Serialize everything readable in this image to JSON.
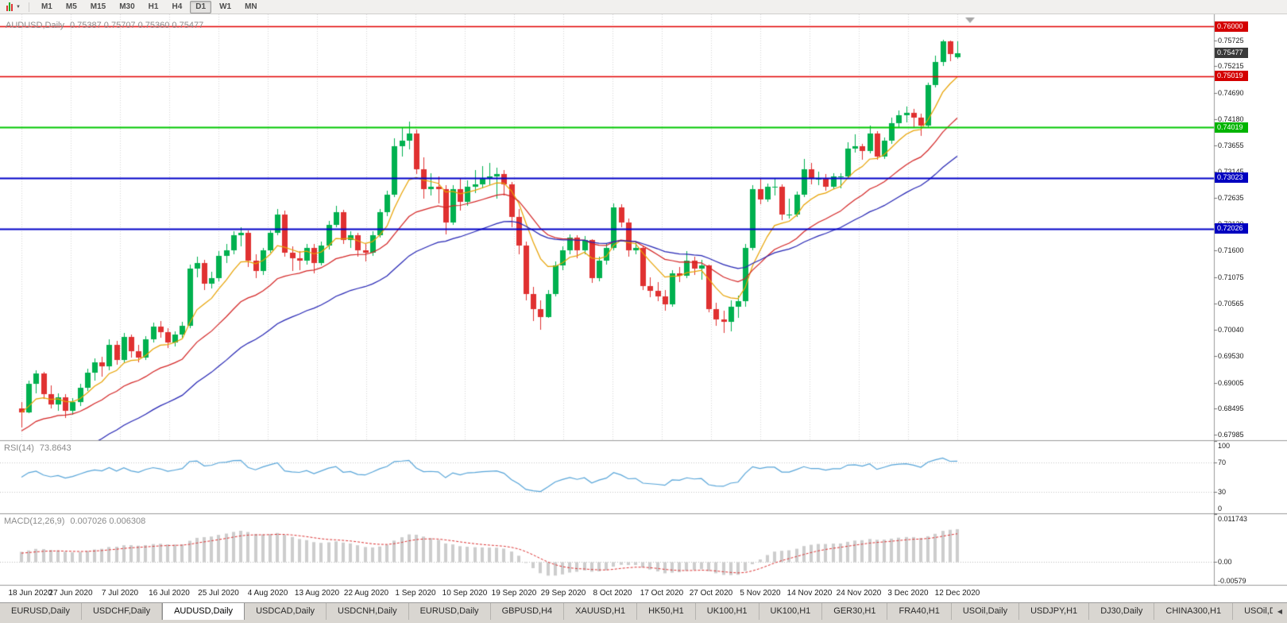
{
  "toolbar": {
    "timeframes": [
      "M1",
      "M5",
      "M15",
      "M30",
      "H1",
      "H4",
      "D1",
      "W1",
      "MN"
    ],
    "active": "D1",
    "caret_glyph": "▼"
  },
  "chart": {
    "symbol_title": "AUDUSD,Daily",
    "ohlc_text": "0.75387 0.75707 0.75360 0.75477"
  },
  "chart_data": {
    "type": "candlestick",
    "title": "AUDUSD Daily candlestick chart with RSI and MACD indicators",
    "symbol": "AUDUSD",
    "period": "Daily",
    "last": {
      "open": 0.75387,
      "high": 0.75707,
      "low": 0.7536,
      "close": 0.75477
    },
    "colors": {
      "up": "#00b14f",
      "down": "#e03131",
      "grid": "#d6d6d6"
    },
    "price_axis": {
      "range_top": 0.76234,
      "range_bottom": 0.67876,
      "labels": [
        "0.75725",
        "0.75215",
        "0.74690",
        "0.74180",
        "0.73655",
        "0.73145",
        "0.72635",
        "0.72120",
        "0.71600",
        "0.71075",
        "0.70565",
        "0.70040",
        "0.69530",
        "0.69005",
        "0.68495",
        "0.67985"
      ]
    },
    "levels": [
      {
        "price": 0.76,
        "label": "0.76000",
        "color": "#e10000",
        "badge_bg": "#d40000",
        "width": 1.4
      },
      {
        "price": 0.75019,
        "label": "0.75019",
        "color": "#e10000",
        "badge_bg": "#d40000",
        "width": 1.4
      },
      {
        "price": 0.74019,
        "label": "0.74019",
        "color": "#00c800",
        "badge_bg": "#00b400",
        "width": 1.8
      },
      {
        "price": 0.73023,
        "label": "0.73023",
        "color": "#0000c8",
        "badge_bg": "#0000c0",
        "width": 1.8
      },
      {
        "price": 0.72026,
        "label": "0.72026",
        "color": "#0000c8",
        "badge_bg": "#0000c0",
        "width": 1.8
      }
    ],
    "current_price_badge": {
      "label": "0.75477",
      "bg": "#3a3a3a"
    },
    "dates": [
      "18 Jun 2020",
      "27 Jun 2020",
      "7 Jul 2020",
      "16 Jul 2020",
      "25 Jul 2020",
      "4 Aug 2020",
      "13 Aug 2020",
      "22 Aug 2020",
      "1 Sep 2020",
      "10 Sep 2020",
      "19 Sep 2020",
      "29 Sep 2020",
      "8 Oct 2020",
      "17 Oct 2020",
      "27 Oct 2020",
      "5 Nov 2020",
      "14 Nov 2020",
      "24 Nov 2020",
      "3 Dec 2020",
      "12 Dec 2020"
    ],
    "moving_averages": [
      {
        "name": "fast-ma",
        "period": 8,
        "color": "#e8a200",
        "seed_offset": 0
      },
      {
        "name": "medium-ma",
        "period": 20,
        "color": "#d42424",
        "seed_offset": -0.004
      },
      {
        "name": "slow-ma",
        "period": 38,
        "color": "#2424b4",
        "seed_offset": -0.014
      }
    ],
    "rsi": {
      "title": "RSI(14)",
      "value_text": "73.8643",
      "period": 14,
      "color": "#57a5d9",
      "range": [
        0,
        100
      ],
      "guides": [
        70,
        30
      ],
      "axis_labels": [
        {
          "v": 100,
          "t": "100"
        },
        {
          "v": 70,
          "t": "70"
        },
        {
          "v": 30,
          "t": "30"
        },
        {
          "v": 0,
          "t": "0"
        }
      ]
    },
    "macd": {
      "title": "MACD(12,26,9)",
      "value_text": "0.007026 0.006308",
      "fast": 12,
      "slow": 26,
      "signal": 9,
      "hist_color": "#cdcdcd",
      "signal_color": "#dd3333",
      "range_top": 0.011743,
      "range_bottom": -0.00579,
      "axis_labels": [
        {
          "v": 0.011743,
          "t": "0.011743"
        },
        {
          "v": 0,
          "t": "0.00"
        },
        {
          "v": -0.00579,
          "t": "-0.00579"
        }
      ]
    },
    "candles": [
      [
        0.685,
        0.6862,
        0.6812,
        0.6842
      ],
      [
        0.6842,
        0.6905,
        0.684,
        0.6898
      ],
      [
        0.6898,
        0.6925,
        0.688,
        0.6918
      ],
      [
        0.6918,
        0.6922,
        0.6868,
        0.6878
      ],
      [
        0.6878,
        0.6895,
        0.685,
        0.6858
      ],
      [
        0.6858,
        0.688,
        0.6845,
        0.6872
      ],
      [
        0.6872,
        0.6878,
        0.6832,
        0.6845
      ],
      [
        0.6845,
        0.687,
        0.6838,
        0.6862
      ],
      [
        0.6862,
        0.6898,
        0.6855,
        0.689
      ],
      [
        0.689,
        0.6928,
        0.6885,
        0.692
      ],
      [
        0.692,
        0.6948,
        0.6905,
        0.694
      ],
      [
        0.694,
        0.6952,
        0.6912,
        0.6932
      ],
      [
        0.6932,
        0.6985,
        0.6925,
        0.6975
      ],
      [
        0.6975,
        0.6982,
        0.6935,
        0.6945
      ],
      [
        0.6945,
        0.6998,
        0.694,
        0.699
      ],
      [
        0.699,
        0.6995,
        0.695,
        0.6962
      ],
      [
        0.6962,
        0.6975,
        0.694,
        0.695
      ],
      [
        0.695,
        0.6992,
        0.6945,
        0.6985
      ],
      [
        0.6985,
        0.7018,
        0.698,
        0.701
      ],
      [
        0.701,
        0.7022,
        0.6988,
        0.7
      ],
      [
        0.7,
        0.7008,
        0.6968,
        0.698
      ],
      [
        0.698,
        0.7002,
        0.6972,
        0.6995
      ],
      [
        0.6995,
        0.702,
        0.6988,
        0.7012
      ],
      [
        0.7012,
        0.7132,
        0.7008,
        0.7125
      ],
      [
        0.7125,
        0.7148,
        0.7108,
        0.7135
      ],
      [
        0.7135,
        0.7142,
        0.7082,
        0.7095
      ],
      [
        0.7095,
        0.7118,
        0.7085,
        0.7105
      ],
      [
        0.7105,
        0.7158,
        0.71,
        0.715
      ],
      [
        0.715,
        0.7172,
        0.7135,
        0.716
      ],
      [
        0.716,
        0.7198,
        0.7152,
        0.719
      ],
      [
        0.719,
        0.7205,
        0.7168,
        0.7195
      ],
      [
        0.7195,
        0.72,
        0.7128,
        0.714
      ],
      [
        0.714,
        0.7152,
        0.7105,
        0.712
      ],
      [
        0.712,
        0.7165,
        0.7112,
        0.716
      ],
      [
        0.716,
        0.72,
        0.7155,
        0.7195
      ],
      [
        0.7195,
        0.7242,
        0.719,
        0.723
      ],
      [
        0.723,
        0.7238,
        0.7148,
        0.7155
      ],
      [
        0.7155,
        0.7168,
        0.712,
        0.7145
      ],
      [
        0.7145,
        0.7158,
        0.7122,
        0.714
      ],
      [
        0.714,
        0.7172,
        0.7132,
        0.7165
      ],
      [
        0.7165,
        0.7172,
        0.7115,
        0.7135
      ],
      [
        0.7135,
        0.7178,
        0.713,
        0.717
      ],
      [
        0.717,
        0.7218,
        0.7162,
        0.721
      ],
      [
        0.721,
        0.7248,
        0.7205,
        0.7235
      ],
      [
        0.7235,
        0.724,
        0.7172,
        0.718
      ],
      [
        0.718,
        0.7198,
        0.7165,
        0.719
      ],
      [
        0.719,
        0.7195,
        0.7148,
        0.716
      ],
      [
        0.716,
        0.7172,
        0.7138,
        0.7155
      ],
      [
        0.7155,
        0.7198,
        0.715,
        0.719
      ],
      [
        0.719,
        0.7242,
        0.7185,
        0.7235
      ],
      [
        0.7235,
        0.7278,
        0.7228,
        0.727
      ],
      [
        0.727,
        0.738,
        0.7265,
        0.7365
      ],
      [
        0.7365,
        0.7402,
        0.7345,
        0.7375
      ],
      [
        0.7375,
        0.7413,
        0.7358,
        0.739
      ],
      [
        0.739,
        0.7398,
        0.731,
        0.732
      ],
      [
        0.732,
        0.7342,
        0.7262,
        0.728
      ],
      [
        0.728,
        0.7312,
        0.7268,
        0.7285
      ],
      [
        0.7285,
        0.7305,
        0.7252,
        0.728
      ],
      [
        0.728,
        0.7288,
        0.7192,
        0.7215
      ],
      [
        0.7215,
        0.7288,
        0.721,
        0.728
      ],
      [
        0.728,
        0.7302,
        0.7238,
        0.7255
      ],
      [
        0.7255,
        0.7298,
        0.7248,
        0.7285
      ],
      [
        0.7285,
        0.7318,
        0.7272,
        0.729
      ],
      [
        0.729,
        0.7325,
        0.7282,
        0.73
      ],
      [
        0.73,
        0.7332,
        0.7288,
        0.7305
      ],
      [
        0.7305,
        0.7322,
        0.7262,
        0.731
      ],
      [
        0.731,
        0.7318,
        0.7268,
        0.729
      ],
      [
        0.729,
        0.7295,
        0.7205,
        0.7225
      ],
      [
        0.7225,
        0.7242,
        0.7152,
        0.717
      ],
      [
        0.717,
        0.7178,
        0.7062,
        0.7075
      ],
      [
        0.7075,
        0.7088,
        0.7022,
        0.7045
      ],
      [
        0.7045,
        0.7062,
        0.7005,
        0.703
      ],
      [
        0.703,
        0.7082,
        0.7028,
        0.7075
      ],
      [
        0.7075,
        0.7138,
        0.707,
        0.713
      ],
      [
        0.713,
        0.7168,
        0.7122,
        0.716
      ],
      [
        0.716,
        0.7192,
        0.7152,
        0.7185
      ],
      [
        0.7185,
        0.719,
        0.7145,
        0.716
      ],
      [
        0.716,
        0.7188,
        0.7152,
        0.718
      ],
      [
        0.718,
        0.7182,
        0.7096,
        0.7105
      ],
      [
        0.7105,
        0.7148,
        0.71,
        0.714
      ],
      [
        0.714,
        0.7172,
        0.7132,
        0.7165
      ],
      [
        0.7165,
        0.7252,
        0.716,
        0.7245
      ],
      [
        0.7245,
        0.725,
        0.7205,
        0.7215
      ],
      [
        0.7215,
        0.7222,
        0.7148,
        0.716
      ],
      [
        0.716,
        0.7178,
        0.7152,
        0.7165
      ],
      [
        0.7165,
        0.717,
        0.7082,
        0.709
      ],
      [
        0.709,
        0.7108,
        0.7068,
        0.708
      ],
      [
        0.708,
        0.7098,
        0.706,
        0.707
      ],
      [
        0.707,
        0.7082,
        0.7042,
        0.7055
      ],
      [
        0.7055,
        0.7122,
        0.705,
        0.7115
      ],
      [
        0.7115,
        0.7128,
        0.7098,
        0.711
      ],
      [
        0.711,
        0.7158,
        0.7105,
        0.714
      ],
      [
        0.714,
        0.7148,
        0.7112,
        0.7125
      ],
      [
        0.7125,
        0.7142,
        0.7102,
        0.713
      ],
      [
        0.713,
        0.7132,
        0.7038,
        0.7045
      ],
      [
        0.7045,
        0.7058,
        0.7012,
        0.7025
      ],
      [
        0.7025,
        0.7042,
        0.6998,
        0.702
      ],
      [
        0.702,
        0.7062,
        0.7002,
        0.705
      ],
      [
        0.705,
        0.7072,
        0.7028,
        0.706
      ],
      [
        0.706,
        0.7172,
        0.7049,
        0.7165
      ],
      [
        0.7165,
        0.7288,
        0.716,
        0.728
      ],
      [
        0.728,
        0.7302,
        0.725,
        0.726
      ],
      [
        0.726,
        0.7292,
        0.7255,
        0.7285
      ],
      [
        0.7285,
        0.7302,
        0.7268,
        0.7285
      ],
      [
        0.7285,
        0.729,
        0.722,
        0.723
      ],
      [
        0.723,
        0.7262,
        0.7222,
        0.723
      ],
      [
        0.723,
        0.7275,
        0.7225,
        0.727
      ],
      [
        0.727,
        0.734,
        0.7265,
        0.732
      ],
      [
        0.732,
        0.7332,
        0.729,
        0.73
      ],
      [
        0.73,
        0.7315,
        0.7288,
        0.73
      ],
      [
        0.73,
        0.731,
        0.7278,
        0.7285
      ],
      [
        0.7285,
        0.7312,
        0.728,
        0.7305
      ],
      [
        0.7305,
        0.7312,
        0.7282,
        0.7305
      ],
      [
        0.7305,
        0.7372,
        0.73,
        0.736
      ],
      [
        0.736,
        0.7388,
        0.7352,
        0.7365
      ],
      [
        0.7365,
        0.737,
        0.7338,
        0.7355
      ],
      [
        0.7355,
        0.7405,
        0.735,
        0.739
      ],
      [
        0.739,
        0.7394,
        0.7338,
        0.7345
      ],
      [
        0.7345,
        0.7382,
        0.734,
        0.7375
      ],
      [
        0.7375,
        0.742,
        0.737,
        0.741
      ],
      [
        0.741,
        0.7435,
        0.7402,
        0.7425
      ],
      [
        0.7425,
        0.7442,
        0.7412,
        0.743
      ],
      [
        0.743,
        0.7438,
        0.74,
        0.742
      ],
      [
        0.742,
        0.7428,
        0.7385,
        0.7405
      ],
      [
        0.7405,
        0.749,
        0.74,
        0.7485
      ],
      [
        0.7485,
        0.7542,
        0.748,
        0.753
      ],
      [
        0.753,
        0.7573,
        0.7522,
        0.757
      ],
      [
        0.757,
        0.7572,
        0.7532,
        0.7545
      ],
      [
        0.75387,
        0.75707,
        0.7536,
        0.75477
      ]
    ]
  },
  "tabs": {
    "items": [
      "EURUSD,Daily",
      "USDCHF,Daily",
      "AUDUSD,Daily",
      "USDCAD,Daily",
      "USDCNH,Daily",
      "EURUSD,Daily",
      "GBPUSD,H4",
      "XAUUSD,H1",
      "HK50,H1",
      "UK100,H1",
      "UK100,H1",
      "GER30,H1",
      "FRA40,H1",
      "USOil,Daily",
      "USDJPY,H1",
      "DJ30,Daily",
      "CHINA300,H1",
      "USOil,Daily"
    ],
    "active_index": 2,
    "scroll_glyph": "◀"
  }
}
